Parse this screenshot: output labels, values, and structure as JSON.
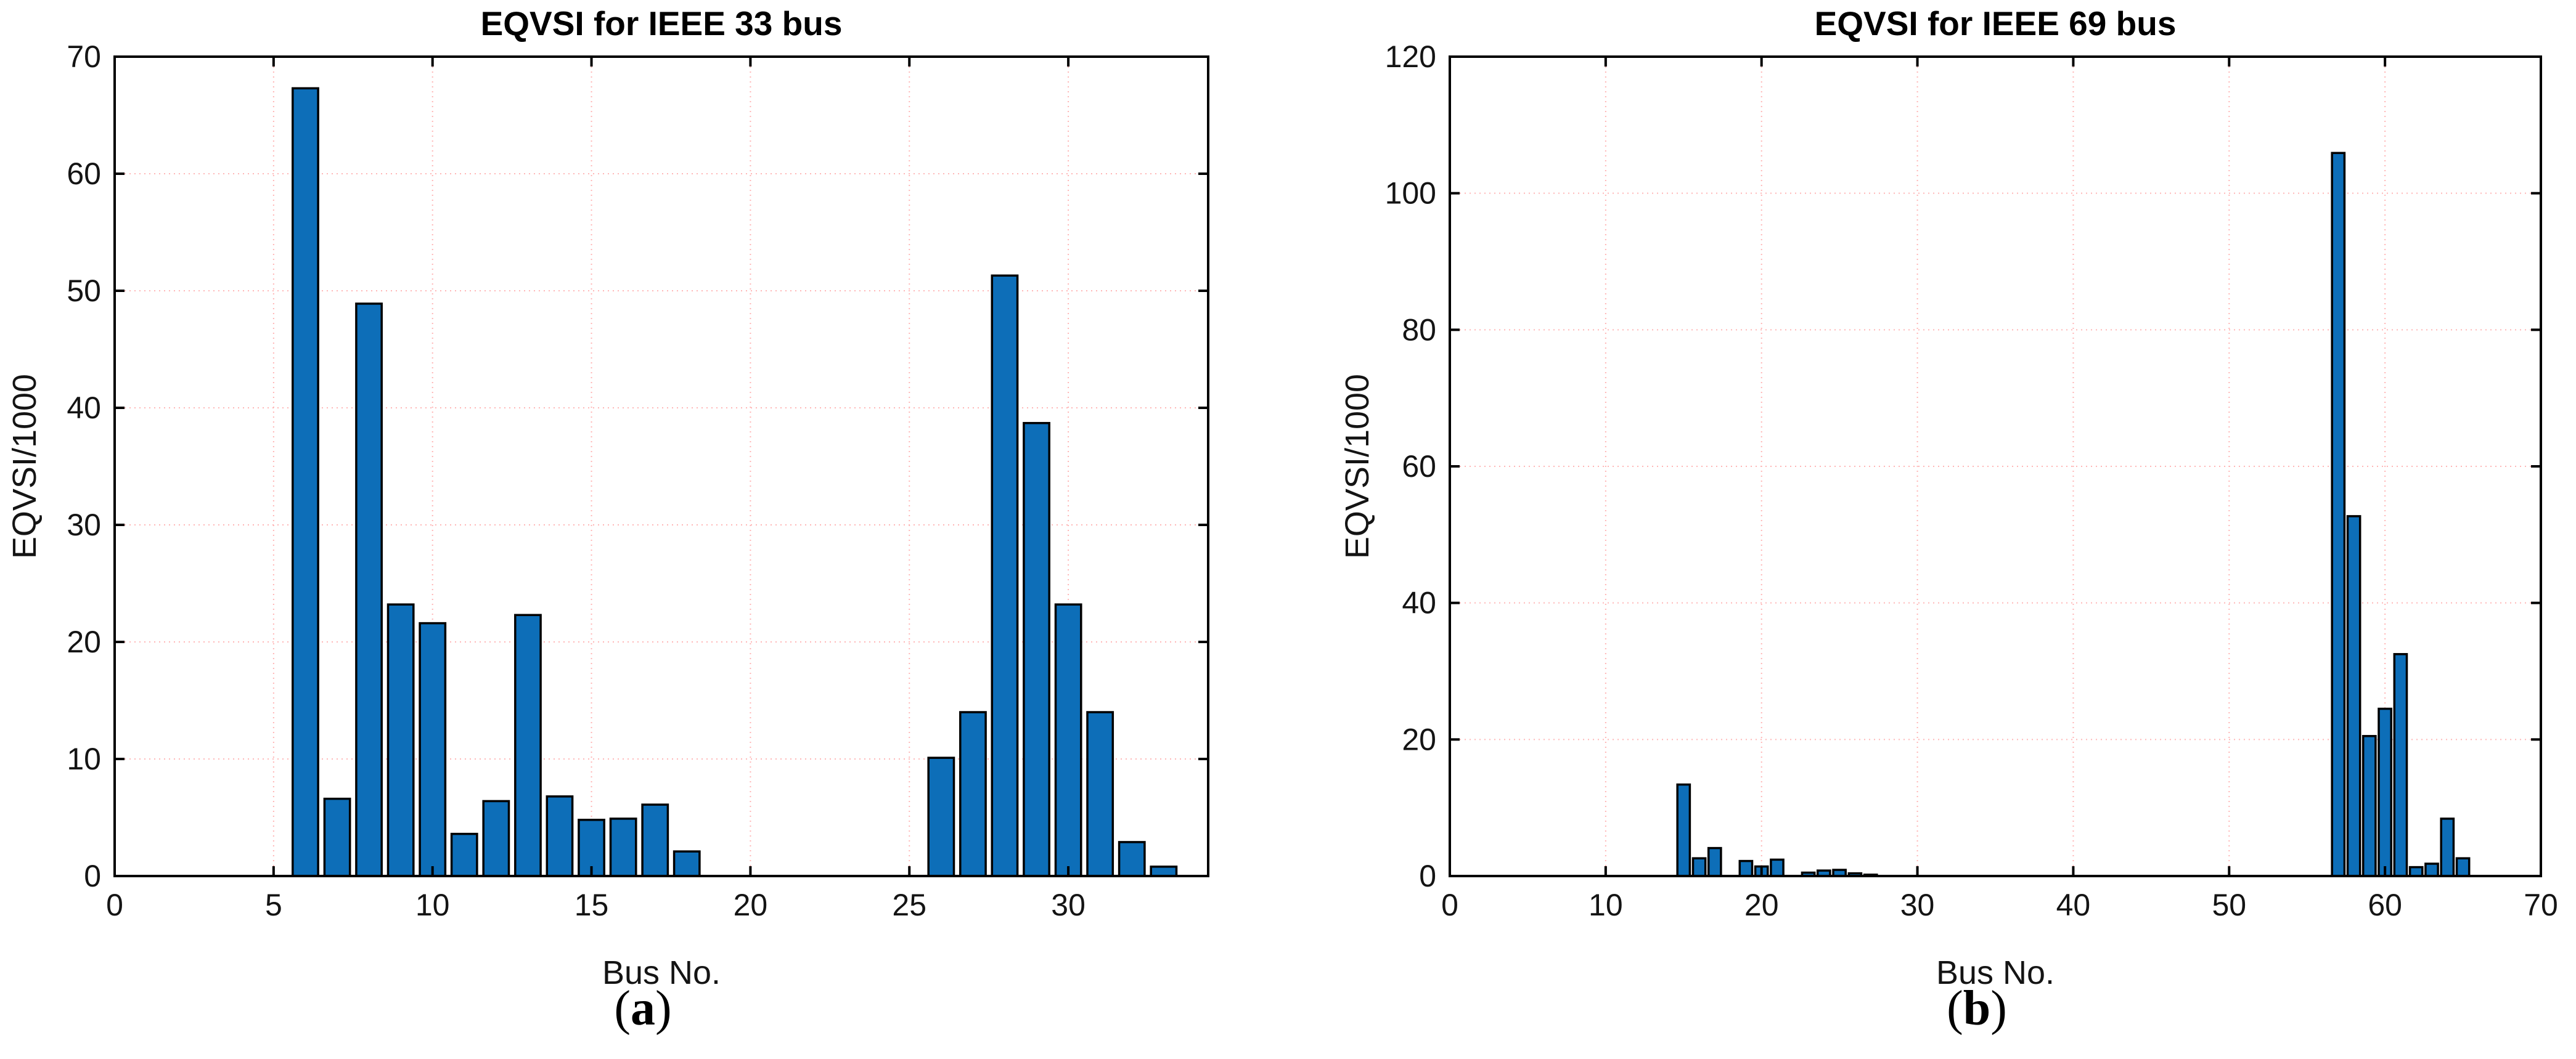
{
  "figure": {
    "panels": [
      {
        "title": "EQVSI for IEEE 33 bus",
        "xlabel": "Bus No.",
        "ylabel": "EQVSI/1000",
        "caption_open": "(",
        "caption_letter": "a",
        "caption_close": ")"
      },
      {
        "title": "EQVSI for IEEE 69 bus",
        "xlabel": "Bus No.",
        "ylabel": "EQVSI/1000",
        "caption_open": "(",
        "caption_letter": "b",
        "caption_close": ")"
      }
    ]
  },
  "chart_data": [
    {
      "type": "bar",
      "title": "EQVSI for IEEE 33 bus",
      "xlabel": "Bus No.",
      "ylabel": "EQVSI/1000",
      "xlim": [
        0,
        34.4
      ],
      "ylim": [
        0,
        70
      ],
      "xticks": [
        0,
        5,
        10,
        15,
        20,
        25,
        30
      ],
      "yticks": [
        0,
        10,
        20,
        30,
        40,
        50,
        60,
        70
      ],
      "grid": true,
      "legend": "none",
      "bar_color": "#0d6eb8",
      "bar_edge_color": "#000000",
      "grid_color": "#ffb6b6",
      "x": [
        6,
        7,
        8,
        9,
        10,
        11,
        12,
        13,
        14,
        15,
        16,
        17,
        18,
        26,
        27,
        28,
        29,
        30,
        31,
        32,
        33
      ],
      "values": [
        67.3,
        6.6,
        48.9,
        23.2,
        21.6,
        3.6,
        6.4,
        22.3,
        6.8,
        4.8,
        4.9,
        6.1,
        2.1,
        10.1,
        14.0,
        51.3,
        38.7,
        23.2,
        14.0,
        2.9,
        0.8
      ]
    },
    {
      "type": "bar",
      "title": "EQVSI for IEEE 69 bus",
      "xlabel": "Bus No.",
      "ylabel": "EQVSI/1000",
      "xlim": [
        0,
        70
      ],
      "ylim": [
        0,
        120
      ],
      "xticks": [
        0,
        10,
        20,
        30,
        40,
        50,
        60,
        70
      ],
      "yticks": [
        0,
        20,
        40,
        60,
        80,
        100,
        120
      ],
      "grid": true,
      "legend": "none",
      "bar_color": "#0d6eb8",
      "bar_edge_color": "#000000",
      "grid_color": "#ffb6b6",
      "x": [
        15,
        16,
        17,
        19,
        20,
        21,
        23,
        24,
        25,
        26,
        27,
        57,
        58,
        59,
        60,
        61,
        62,
        63,
        64,
        65
      ],
      "values": [
        13.4,
        2.6,
        4.1,
        2.2,
        1.4,
        2.4,
        0.5,
        0.8,
        0.9,
        0.4,
        0.2,
        105.9,
        52.7,
        20.5,
        24.5,
        32.5,
        1.3,
        1.8,
        8.4,
        2.6
      ]
    }
  ]
}
